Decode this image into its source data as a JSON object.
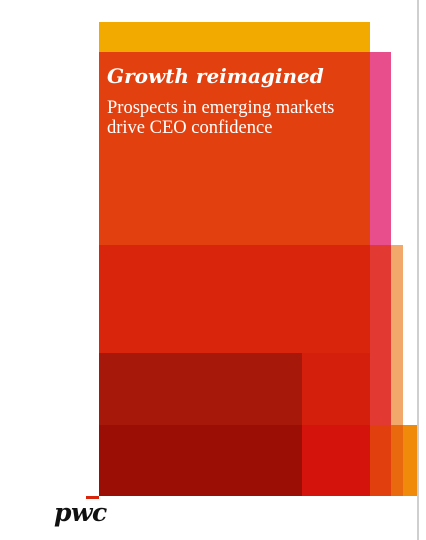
{
  "cover": {
    "title": "Growth reimagined",
    "subtitle_line1": "Prospects in emerging markets",
    "subtitle_line2": "drive CEO confidence"
  },
  "brand": {
    "logo_text": "pwc",
    "colors": {
      "yellow": "#F2A900",
      "orange_red": "#E2410F",
      "pink": "#E94E8C",
      "red": "#D9250C",
      "dark_red": "#9A0E06",
      "peach": "#F3A86B",
      "orange": "#F08A0A"
    }
  }
}
